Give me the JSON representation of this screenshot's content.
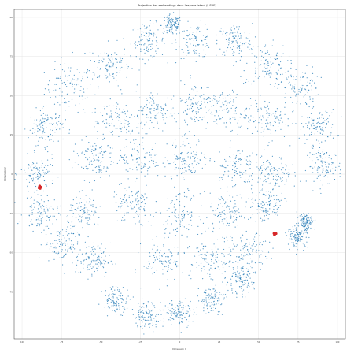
{
  "chart_data": {
    "type": "scatter",
    "title": "Projection des embeddings dans l'espace latent (t-SNE)",
    "xlabel": "Dimension 1",
    "ylabel": "Dimension 2",
    "xlim": [
      -105,
      105
    ],
    "ylim": [
      -105,
      105
    ],
    "x_ticks": [
      -100,
      -75,
      -50,
      -25,
      0,
      25,
      50,
      75,
      100
    ],
    "y_ticks": [
      -75,
      -50,
      -25,
      0,
      25,
      50,
      75,
      100
    ],
    "grid": true,
    "point_color": "#1f77b4",
    "highlight_color": "#d62728",
    "series": [
      {
        "role": "background",
        "note": "dense cloud of thousands of small points forming a ring-like manifold; density regions listed as [center_x, center_y, spread]",
        "regions": [
          [
            -70,
            55,
            14
          ],
          [
            -45,
            70,
            12
          ],
          [
            -20,
            85,
            10
          ],
          [
            -5,
            95,
            6
          ],
          [
            10,
            85,
            10
          ],
          [
            35,
            85,
            10
          ],
          [
            55,
            70,
            12
          ],
          [
            75,
            55,
            12
          ],
          [
            88,
            30,
            10
          ],
          [
            92,
            5,
            10
          ],
          [
            -85,
            30,
            10
          ],
          [
            -90,
            0,
            10
          ],
          [
            -88,
            -25,
            10
          ],
          [
            -75,
            -45,
            10
          ],
          [
            -55,
            -55,
            10
          ],
          [
            -40,
            35,
            14
          ],
          [
            -15,
            40,
            12
          ],
          [
            10,
            45,
            12
          ],
          [
            30,
            40,
            12
          ],
          [
            55,
            35,
            12
          ],
          [
            -55,
            10,
            12
          ],
          [
            -25,
            10,
            12
          ],
          [
            5,
            10,
            12
          ],
          [
            35,
            5,
            12
          ],
          [
            60,
            0,
            10
          ],
          [
            -60,
            -25,
            10
          ],
          [
            -30,
            -20,
            12
          ],
          [
            0,
            -25,
            12
          ],
          [
            30,
            -25,
            12
          ],
          [
            55,
            -20,
            10
          ],
          [
            -10,
            -55,
            12
          ],
          [
            20,
            -55,
            12
          ],
          [
            45,
            -50,
            10
          ],
          [
            -40,
            -80,
            8
          ],
          [
            -20,
            -90,
            8
          ],
          [
            0,
            -88,
            8
          ],
          [
            20,
            -80,
            8
          ],
          [
            38,
            -68,
            8
          ],
          [
            75,
            -40,
            6
          ],
          [
            80,
            -30,
            5
          ]
        ]
      },
      {
        "role": "highlight",
        "points": [
          [
            -88.8,
            -7.5
          ],
          [
            -88.2,
            -8.2
          ],
          [
            -89.3,
            -8.8
          ],
          [
            -88.5,
            -9.2
          ],
          [
            -89.0,
            -7.9
          ],
          [
            59.7,
            -37.8
          ],
          [
            60.4,
            -38.3
          ],
          [
            61.1,
            -37.9
          ],
          [
            60.0,
            -38.8
          ]
        ]
      }
    ]
  }
}
